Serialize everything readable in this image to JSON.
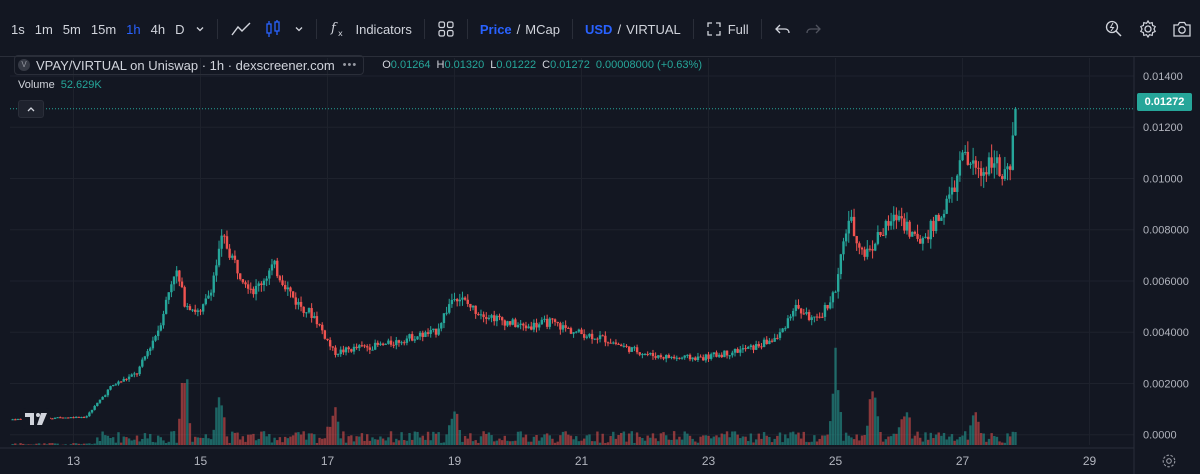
{
  "toolbar": {
    "timeframes": [
      "1s",
      "1m",
      "5m",
      "15m",
      "1h",
      "4h",
      "D"
    ],
    "active_timeframe": "1h",
    "indicators_label": "Indicators",
    "price_label": "Price",
    "mcap_label": "MCap",
    "slash": "/",
    "usd_label": "USD",
    "quote_label": "VIRTUAL",
    "full_label": "Full"
  },
  "legend": {
    "symbol": "VPAY/VIRTUAL on Uniswap · 1h · dexscreener.com",
    "logo_letter": "V",
    "open_key": "O",
    "open": "0.01264",
    "high_key": "H",
    "high": "0.01320",
    "low_key": "L",
    "low": "0.01222",
    "close_key": "C",
    "close": "0.01272",
    "change": "0.00008000 (+0.63%)",
    "volume_label": "Volume",
    "volume_value": "52.629K"
  },
  "price_tag": "0.01272",
  "colors": {
    "up": "#26a69a",
    "down": "#ef5350",
    "background": "#131722",
    "grid": "#1e222d",
    "accent": "#2962ff"
  },
  "chart_data": {
    "type": "candlestick",
    "title": "VPAY/VIRTUAL on Uniswap · 1h · dexscreener.com",
    "x_ticks": [
      "13",
      "15",
      "17",
      "19",
      "21",
      "23",
      "25",
      "27",
      "29"
    ],
    "x_range_days": [
      12.0,
      29.7
    ],
    "y_ticks": [
      "0.01400",
      "0.01200",
      "0.01000",
      "0.008000",
      "0.006000",
      "0.004000",
      "0.002000",
      "0.0000"
    ],
    "ylim": [
      -0.0004,
      0.0147
    ],
    "last_price": 0.01272,
    "grid": true,
    "price_trend": [
      {
        "day": 12.0,
        "price": 0.0006
      },
      {
        "day": 12.6,
        "price": 0.00065
      },
      {
        "day": 13.2,
        "price": 0.0007
      },
      {
        "day": 13.6,
        "price": 0.0019
      },
      {
        "day": 14.0,
        "price": 0.0024
      },
      {
        "day": 14.35,
        "price": 0.0042
      },
      {
        "day": 14.6,
        "price": 0.0065
      },
      {
        "day": 14.75,
        "price": 0.0052
      },
      {
        "day": 15.0,
        "price": 0.0047
      },
      {
        "day": 15.15,
        "price": 0.0056
      },
      {
        "day": 15.35,
        "price": 0.0077
      },
      {
        "day": 15.6,
        "price": 0.0064
      },
      {
        "day": 15.85,
        "price": 0.0056
      },
      {
        "day": 16.15,
        "price": 0.0066
      },
      {
        "day": 16.5,
        "price": 0.0052
      },
      {
        "day": 16.8,
        "price": 0.0046
      },
      {
        "day": 17.1,
        "price": 0.0032
      },
      {
        "day": 17.5,
        "price": 0.0034
      },
      {
        "day": 17.9,
        "price": 0.0035
      },
      {
        "day": 18.3,
        "price": 0.0038
      },
      {
        "day": 18.7,
        "price": 0.004
      },
      {
        "day": 19.0,
        "price": 0.0055
      },
      {
        "day": 19.3,
        "price": 0.0049
      },
      {
        "day": 19.7,
        "price": 0.0045
      },
      {
        "day": 20.1,
        "price": 0.0042
      },
      {
        "day": 20.5,
        "price": 0.0044
      },
      {
        "day": 20.9,
        "price": 0.004
      },
      {
        "day": 21.3,
        "price": 0.0038
      },
      {
        "day": 21.7,
        "price": 0.0034
      },
      {
        "day": 22.1,
        "price": 0.0031
      },
      {
        "day": 22.5,
        "price": 0.003
      },
      {
        "day": 22.9,
        "price": 0.003
      },
      {
        "day": 23.3,
        "price": 0.0032
      },
      {
        "day": 23.7,
        "price": 0.0034
      },
      {
        "day": 24.1,
        "price": 0.0038
      },
      {
        "day": 24.35,
        "price": 0.005
      },
      {
        "day": 24.7,
        "price": 0.0044
      },
      {
        "day": 25.0,
        "price": 0.0056
      },
      {
        "day": 25.2,
        "price": 0.0085
      },
      {
        "day": 25.45,
        "price": 0.007
      },
      {
        "day": 25.7,
        "price": 0.0078
      },
      {
        "day": 26.0,
        "price": 0.0086
      },
      {
        "day": 26.3,
        "price": 0.0075
      },
      {
        "day": 26.6,
        "price": 0.0083
      },
      {
        "day": 26.85,
        "price": 0.0095
      },
      {
        "day": 27.0,
        "price": 0.0108
      },
      {
        "day": 27.3,
        "price": 0.0102
      },
      {
        "day": 27.5,
        "price": 0.011
      },
      {
        "day": 27.6,
        "price": 0.0099
      },
      {
        "day": 27.75,
        "price": 0.0102
      },
      {
        "day": 27.85,
        "price": 0.01272
      }
    ],
    "volume_spikes": [
      {
        "day": 14.75,
        "volume": 0.9
      },
      {
        "day": 15.3,
        "volume": 0.6
      },
      {
        "day": 17.1,
        "volume": 0.4
      },
      {
        "day": 19.0,
        "volume": 0.35
      },
      {
        "day": 25.0,
        "volume": 1.0
      },
      {
        "day": 25.6,
        "volume": 0.75
      },
      {
        "day": 26.1,
        "volume": 0.45
      },
      {
        "day": 27.2,
        "volume": 0.3
      }
    ]
  }
}
